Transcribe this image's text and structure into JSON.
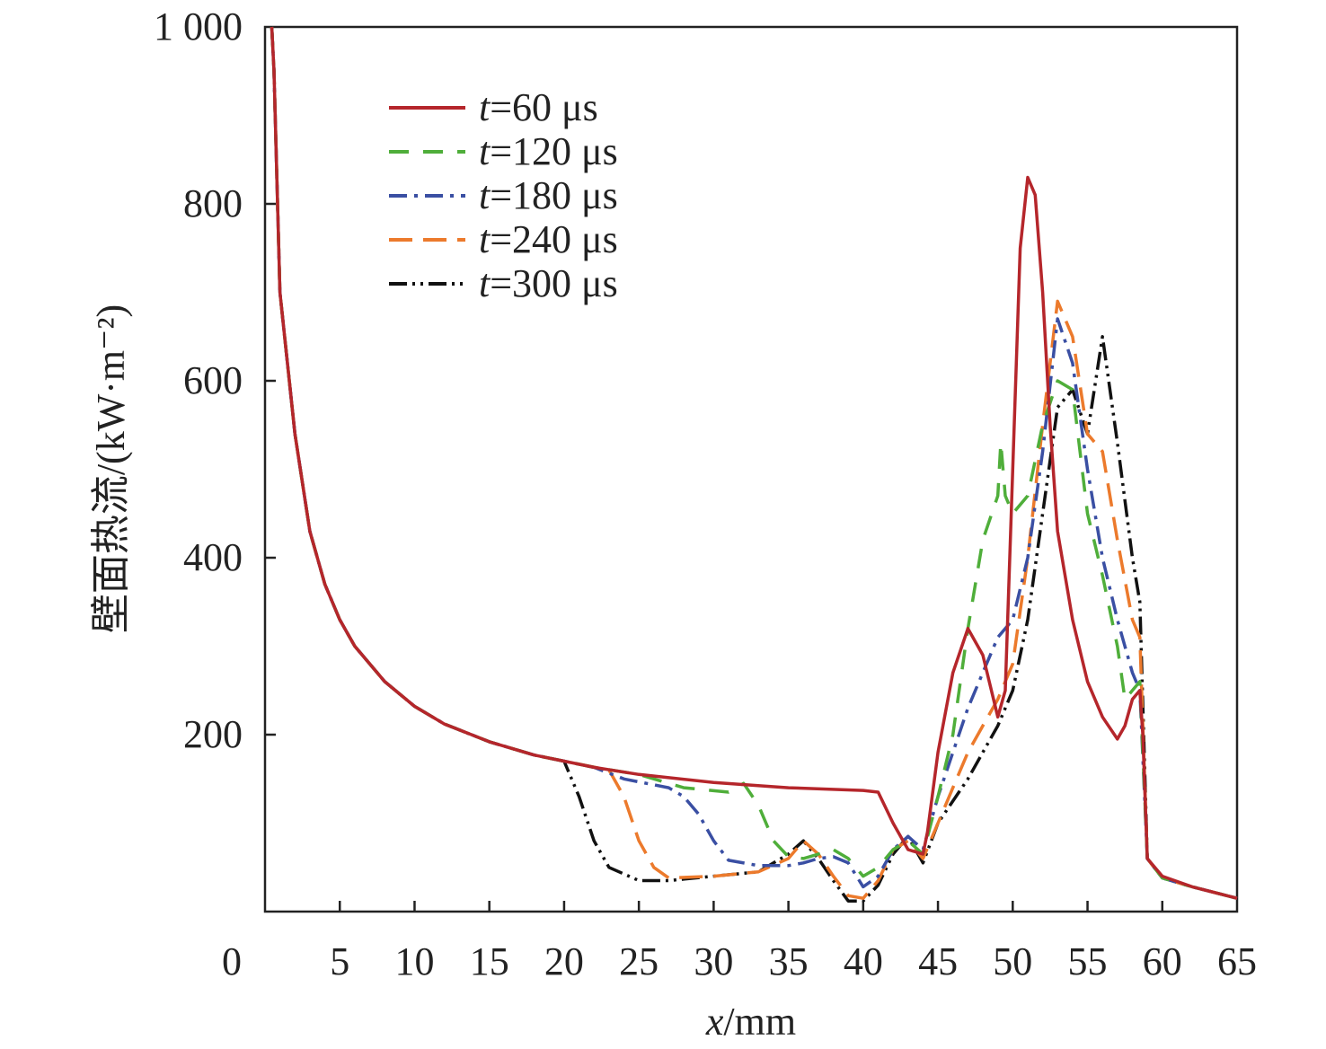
{
  "chart_data": {
    "type": "line",
    "title": "",
    "xlabel": "x/mm",
    "xlabel_var": "x",
    "xlabel_unit": "/mm",
    "ylabel": "壁面热流/(kW·m⁻²)",
    "xlim": [
      0,
      65
    ],
    "ylim": [
      0,
      1000
    ],
    "grid": false,
    "legend_position": "top-left",
    "x_ticks": [
      0,
      5,
      10,
      15,
      20,
      25,
      30,
      35,
      40,
      45,
      50,
      55,
      60,
      65
    ],
    "x_tick_labels": [
      "0",
      "5",
      "10",
      "15",
      "20",
      "25",
      "30",
      "35",
      "40",
      "45",
      "50",
      "55",
      "60",
      "65"
    ],
    "y_ticks": [
      200,
      400,
      600,
      800,
      1000
    ],
    "y_tick_labels": [
      "200",
      "400",
      "600",
      "800",
      "1 000"
    ],
    "common_prefix": {
      "x": [
        0.45,
        0.6,
        1,
        2,
        3,
        4,
        5,
        6,
        8,
        10,
        12,
        15,
        18,
        20
      ],
      "y": [
        1000,
        950,
        700,
        540,
        430,
        370,
        330,
        300,
        260,
        232,
        212,
        192,
        177,
        170
      ]
    },
    "series": [
      {
        "name": "t=60 μs",
        "label_t": "t",
        "label_rest": "=60 μs",
        "color": "#b5262b",
        "dash": "solid",
        "x": [
          22,
          25,
          30,
          35,
          40,
          41,
          42,
          43,
          44,
          44.3,
          45,
          46,
          47,
          48,
          49,
          49.5,
          50,
          50.5,
          51,
          51.5,
          52,
          52.5,
          53,
          54,
          55,
          56,
          57,
          57.5,
          58,
          58.5,
          58.7,
          59,
          60,
          62,
          65
        ],
        "y": [
          163,
          155,
          146,
          140,
          137,
          135,
          100,
          70,
          65,
          90,
          180,
          270,
          320,
          290,
          220,
          250,
          500,
          750,
          830,
          810,
          700,
          550,
          430,
          330,
          260,
          220,
          195,
          210,
          240,
          250,
          200,
          60,
          40,
          28,
          15
        ]
      },
      {
        "name": "t=120 μs",
        "label_t": "t",
        "label_rest": "=120 μs",
        "color": "#4fae3a",
        "dash": "dashed",
        "x": [
          22,
          25,
          28,
          31,
          32,
          33,
          34,
          35,
          36,
          37,
          38,
          39,
          40,
          41,
          42,
          43,
          44,
          45,
          46,
          47,
          48,
          49,
          49.2,
          49.5,
          50,
          51,
          52,
          53,
          54,
          55,
          56,
          57,
          57.5,
          58,
          58.5,
          59,
          60,
          62,
          65
        ],
        "y": [
          163,
          155,
          140,
          135,
          145,
          120,
          80,
          62,
          60,
          65,
          70,
          60,
          40,
          50,
          70,
          80,
          65,
          130,
          200,
          320,
          420,
          470,
          530,
          470,
          450,
          470,
          550,
          600,
          590,
          450,
          380,
          300,
          240,
          250,
          260,
          60,
          38,
          28,
          15
        ]
      },
      {
        "name": "t=180 μs",
        "label_t": "t",
        "label_rest": "=180 μs",
        "color": "#3a4fa3",
        "dash": "dashdot",
        "x": [
          22,
          24,
          27,
          28,
          29,
          30,
          31,
          33,
          35,
          36,
          37,
          38,
          39,
          40,
          41,
          42,
          43,
          44,
          45,
          46,
          47,
          48,
          49,
          50,
          51,
          52,
          53,
          54,
          55,
          56,
          57,
          58,
          58.5,
          59,
          60,
          62,
          65
        ],
        "y": [
          163,
          150,
          140,
          130,
          110,
          80,
          58,
          52,
          52,
          55,
          60,
          62,
          55,
          28,
          40,
          70,
          85,
          70,
          130,
          180,
          230,
          270,
          310,
          330,
          400,
          520,
          670,
          620,
          500,
          400,
          330,
          270,
          250,
          60,
          38,
          28,
          15
        ]
      },
      {
        "name": "t=240 μs",
        "label_t": "t",
        "label_rest": "=240 μs",
        "color": "#ec7a2c",
        "dash": "longdash",
        "x": [
          23,
          24,
          25,
          26,
          27,
          30,
          33,
          35,
          36,
          37,
          38,
          39,
          40,
          41,
          42,
          43,
          44,
          45,
          46,
          47,
          48,
          49,
          50,
          51,
          52,
          53,
          54,
          55,
          56,
          57,
          58,
          58.5,
          59,
          60,
          62,
          65
        ],
        "y": [
          160,
          130,
          80,
          50,
          38,
          40,
          45,
          60,
          80,
          65,
          40,
          18,
          15,
          35,
          70,
          80,
          60,
          100,
          140,
          180,
          210,
          240,
          280,
          400,
          550,
          690,
          650,
          540,
          520,
          420,
          330,
          310,
          60,
          38,
          28,
          15
        ]
      },
      {
        "name": "t=300 μs",
        "label_t": "t",
        "label_rest": "=300 μs",
        "color": "#111111",
        "dash": "dashdotdot",
        "x": [
          21,
          22,
          23,
          25,
          27,
          30,
          33,
          35,
          36,
          37,
          38,
          39,
          40,
          41,
          42,
          43,
          44,
          45,
          46,
          47,
          48,
          49,
          50,
          51,
          52,
          53,
          54,
          55,
          56,
          57,
          58,
          58.5,
          59,
          60,
          62,
          65
        ],
        "y": [
          130,
          80,
          50,
          35,
          35,
          40,
          45,
          65,
          80,
          60,
          35,
          12,
          12,
          30,
          65,
          85,
          55,
          100,
          125,
          150,
          180,
          210,
          250,
          330,
          450,
          570,
          590,
          540,
          650,
          530,
          400,
          350,
          60,
          38,
          28,
          15
        ]
      }
    ]
  }
}
